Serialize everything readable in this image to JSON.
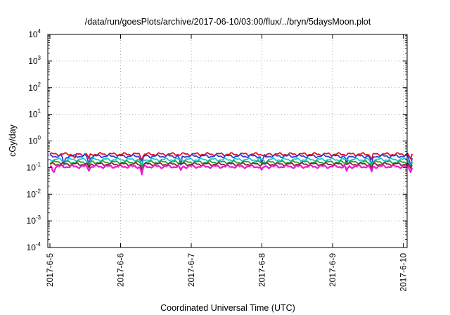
{
  "chart_data": {
    "type": "line",
    "title": "/data/run/goesPlots/archive/2017-06-10/03:00/flux/../bryn/5daysMoon.plot",
    "xlabel": "Coordinated Universal Time (UTC)",
    "ylabel": "cGy/day",
    "yscale": "log",
    "ylim": [
      0.0001,
      10000
    ],
    "y_ticks": [
      {
        "base": "10",
        "exp": "-4",
        "value": 0.0001
      },
      {
        "base": "10",
        "exp": "-3",
        "value": 0.001
      },
      {
        "base": "10",
        "exp": "-2",
        "value": 0.01
      },
      {
        "base": "10",
        "exp": "-1",
        "value": 0.1
      },
      {
        "base": "10",
        "exp": "0",
        "value": 1
      },
      {
        "base": "10",
        "exp": "1",
        "value": 10
      },
      {
        "base": "10",
        "exp": "2",
        "value": 100
      },
      {
        "base": "10",
        "exp": "3",
        "value": 1000
      },
      {
        "base": "10",
        "exp": "4",
        "value": 10000
      }
    ],
    "xlim": [
      "2017-06-05",
      "2017-06-10 03:00"
    ],
    "x_ticks": [
      "2017-6-5",
      "2017-6-6",
      "2017-6-7",
      "2017-6-8",
      "2017-6-9",
      "2017-6-10"
    ],
    "grid": true,
    "series": [
      {
        "color": "#e3101d",
        "baseline": 0.32,
        "dips": [
          [
            0.35,
            0.22
          ],
          [
            0.55,
            0.22
          ],
          [
            1.3,
            0.18
          ],
          [
            3.05,
            0.24
          ],
          [
            4.55,
            0.2
          ],
          [
            5.1,
            0.2
          ]
        ]
      },
      {
        "color": "#2f3bd8",
        "baseline": 0.27,
        "dips": [
          [
            0.2,
            0.12
          ],
          [
            0.55,
            0.12
          ],
          [
            1.3,
            0.09
          ],
          [
            1.85,
            0.12
          ],
          [
            3.0,
            0.13
          ],
          [
            4.2,
            0.13
          ],
          [
            4.55,
            0.11
          ],
          [
            5.1,
            0.1
          ]
        ]
      },
      {
        "color": "#18c7d6",
        "baseline": 0.2,
        "dips": [
          [
            0.2,
            0.13
          ],
          [
            0.55,
            0.12
          ],
          [
            1.3,
            0.11
          ],
          [
            3.05,
            0.13
          ],
          [
            4.55,
            0.12
          ],
          [
            5.1,
            0.11
          ]
        ]
      },
      {
        "color": "#22a326",
        "baseline": 0.16,
        "dips": [
          [
            0.55,
            0.12
          ],
          [
            1.3,
            0.1
          ],
          [
            4.55,
            0.11
          ],
          [
            5.1,
            0.1
          ]
        ]
      },
      {
        "color": "#8a1f3c",
        "baseline": 0.135,
        "dips": [
          [
            0.55,
            0.1
          ],
          [
            1.3,
            0.08
          ],
          [
            4.55,
            0.09
          ],
          [
            5.1,
            0.09
          ]
        ]
      },
      {
        "color": "#e61cd2",
        "baseline": 0.11,
        "dips": [
          [
            0.05,
            0.06
          ],
          [
            0.55,
            0.075
          ],
          [
            1.3,
            0.055
          ],
          [
            1.85,
            0.08
          ],
          [
            3.0,
            0.08
          ],
          [
            4.2,
            0.075
          ],
          [
            4.55,
            0.07
          ],
          [
            5.1,
            0.065
          ]
        ]
      }
    ]
  }
}
